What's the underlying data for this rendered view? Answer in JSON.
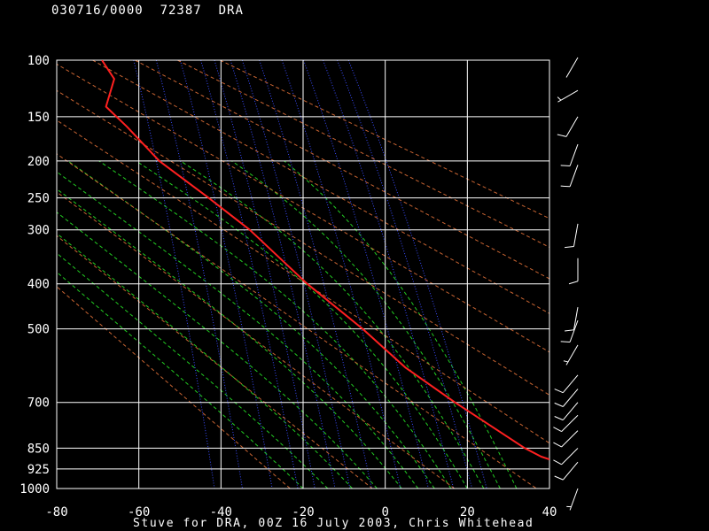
{
  "header": {
    "datetime": "030716/0000",
    "station_id": "72387",
    "station": "DRA"
  },
  "caption": "Stuve for DRA, 00Z 16 July 2003, Chris Whitehead",
  "colors": {
    "background": "#000000",
    "grid": "#ffffff",
    "temperature": "#ff2020",
    "dry_adiabat": "#c86432",
    "moist_adiabat": "#22cc22",
    "mixing_ratio": "#3a4cff",
    "wind_barb": "#ffffff"
  },
  "chart_data": {
    "type": "line",
    "diagram": "Stuve",
    "xlabel": "",
    "ylabel": "",
    "xlim": [
      -80,
      40
    ],
    "ylim": [
      1000,
      100
    ],
    "x_ticks": [
      -80,
      -60,
      -40,
      -20,
      0,
      20,
      40
    ],
    "x_tick_labels": [
      "-80",
      "-60",
      "-40",
      "-20",
      "0",
      "20",
      "40"
    ],
    "pressure_levels": [
      100,
      150,
      200,
      250,
      300,
      400,
      500,
      700,
      850,
      925,
      1000
    ],
    "pressure_labels": [
      "100",
      "150",
      "200",
      "250",
      "300",
      "400",
      "500",
      "700",
      "850",
      "925",
      "1000"
    ],
    "grid": true,
    "series": [
      {
        "kind": "temperature",
        "points": [
          {
            "p": 100,
            "t": -69
          },
          {
            "p": 115,
            "t": -66
          },
          {
            "p": 140,
            "t": -68
          },
          {
            "p": 160,
            "t": -63
          },
          {
            "p": 200,
            "t": -55
          },
          {
            "p": 250,
            "t": -43
          },
          {
            "p": 300,
            "t": -33
          },
          {
            "p": 400,
            "t": -19
          },
          {
            "p": 500,
            "t": -5.5
          },
          {
            "p": 600,
            "t": 5
          },
          {
            "p": 700,
            "t": 17
          },
          {
            "p": 850,
            "t": 34
          },
          {
            "p": 880,
            "t": 38
          },
          {
            "p": 890,
            "t": 40
          }
        ]
      }
    ],
    "dry_adiabats_theta_K": [
      250,
      270,
      290,
      310,
      330,
      350,
      370,
      390,
      410,
      430,
      450
    ],
    "moist_adiabats_C": [
      -20,
      -14,
      -8,
      -2,
      4,
      8,
      12,
      16,
      20,
      24,
      28,
      32
    ],
    "mixing_ratio_lines_gkg": [
      0.1,
      0.2,
      0.4,
      0.7,
      1,
      1.5,
      2,
      3,
      5,
      8,
      12,
      16,
      20
    ],
    "wind_barbs": [
      {
        "p": 98,
        "dir": 210,
        "kt": 0
      },
      {
        "p": 125,
        "dir": 240,
        "kt": 5
      },
      {
        "p": 150,
        "dir": 210,
        "kt": 10
      },
      {
        "p": 180,
        "dir": 200,
        "kt": 10
      },
      {
        "p": 205,
        "dir": 200,
        "kt": 10
      },
      {
        "p": 290,
        "dir": 190,
        "kt": 10
      },
      {
        "p": 350,
        "dir": 180,
        "kt": 10
      },
      {
        "p": 450,
        "dir": 190,
        "kt": 10
      },
      {
        "p": 480,
        "dir": 200,
        "kt": 10
      },
      {
        "p": 540,
        "dir": 210,
        "kt": 5
      },
      {
        "p": 620,
        "dir": 220,
        "kt": 10
      },
      {
        "p": 660,
        "dir": 220,
        "kt": 10
      },
      {
        "p": 700,
        "dir": 220,
        "kt": 10
      },
      {
        "p": 740,
        "dir": 225,
        "kt": 10
      },
      {
        "p": 790,
        "dir": 225,
        "kt": 10
      },
      {
        "p": 850,
        "dir": 225,
        "kt": 10
      },
      {
        "p": 900,
        "dir": 220,
        "kt": 10
      },
      {
        "p": 1000,
        "dir": 200,
        "kt": 5
      }
    ]
  }
}
